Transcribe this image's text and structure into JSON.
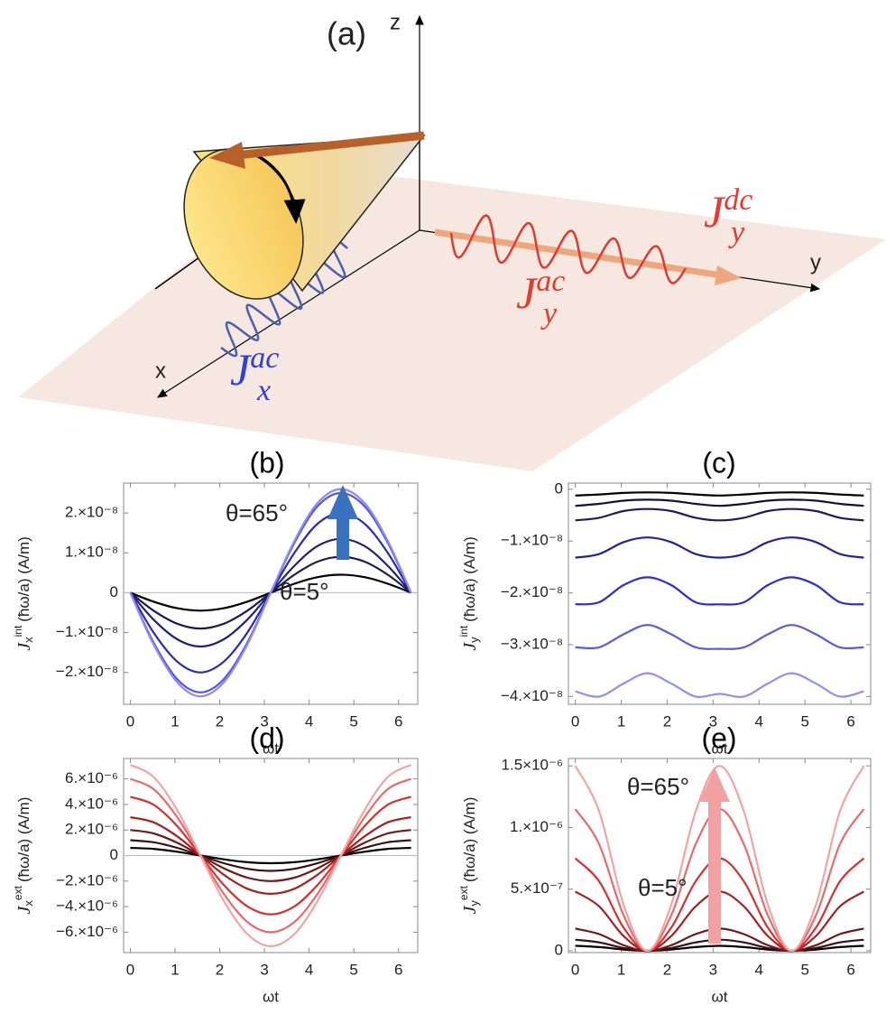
{
  "diagram": {
    "title": "(a)",
    "axes": [
      "x",
      "y",
      "z"
    ],
    "labels": [
      {
        "symbol": "J",
        "sub": "y",
        "sup": "dc",
        "color": "#e53a2f"
      },
      {
        "symbol": "J",
        "sub": "y",
        "sup": "ac",
        "color": "#e53a2f"
      },
      {
        "symbol": "J",
        "sub": "x",
        "sup": "ac",
        "color": "#2f3fd8"
      }
    ]
  },
  "chart_data": [
    {
      "type": "line",
      "title": "(b)",
      "xlabel": "ωt",
      "ylabel": {
        "symbol": "J",
        "sub": "x",
        "sup": "int",
        "unit": "(ħω/a) (A/m)"
      },
      "x": [
        0,
        0.52,
        1.05,
        1.57,
        2.09,
        2.62,
        3.14,
        3.67,
        4.19,
        4.71,
        5.24,
        5.76,
        6.28
      ],
      "xlim": [
        -0.15,
        6.43
      ],
      "xticks": [
        0,
        1,
        2,
        3,
        4,
        5,
        6
      ],
      "ylim": [
        -2.8e-08,
        2.75e-08
      ],
      "yticks": [
        {
          "value": -2e-08,
          "label": "−2.×10⁻⁸"
        },
        {
          "value": -1e-08,
          "label": "−1.×10⁻⁸"
        },
        0,
        {
          "value": 1e-08,
          "label": "1.×10⁻⁸"
        },
        {
          "value": 2e-08,
          "label": "2.×10⁻⁸"
        }
      ],
      "zero_line": true,
      "series": [
        {
          "color": "#000000",
          "values": [
            0,
            -2.25e-09,
            -3.9e-09,
            -4.5e-09,
            -3.9e-09,
            -2.25e-09,
            0,
            2.25e-09,
            3.9e-09,
            4.5e-09,
            3.9e-09,
            2.25e-09,
            0
          ]
        },
        {
          "color": "#1c1c4e",
          "values": [
            0,
            -4.5e-09,
            -7.8e-09,
            -9e-09,
            -7.8e-09,
            -4.5e-09,
            0,
            4.5e-09,
            7.8e-09,
            9e-09,
            7.8e-09,
            4.5e-09,
            0
          ]
        },
        {
          "color": "#20207c",
          "values": [
            0,
            -6.75e-09,
            -1.17e-08,
            -1.35e-08,
            -1.17e-08,
            -6.75e-09,
            0,
            6.75e-09,
            1.17e-08,
            1.35e-08,
            1.17e-08,
            6.75e-09,
            0
          ]
        },
        {
          "color": "#2a2ab4",
          "values": [
            0,
            -1e-08,
            -1.73e-08,
            -2e-08,
            -1.73e-08,
            -1e-08,
            0,
            1e-08,
            1.73e-08,
            2e-08,
            1.73e-08,
            1e-08,
            0
          ]
        },
        {
          "color": "#5656e0",
          "values": [
            0,
            -1.25e-08,
            -2.17e-08,
            -2.5e-08,
            -2.17e-08,
            -1.25e-08,
            0,
            1.25e-08,
            2.17e-08,
            2.5e-08,
            2.17e-08,
            1.25e-08,
            0
          ]
        },
        {
          "color": "#8c8cf2",
          "values": [
            0,
            -1.3e-08,
            -2.25e-08,
            -2.6e-08,
            -2.25e-08,
            -1.3e-08,
            0,
            1.3e-08,
            2.25e-08,
            2.6e-08,
            2.25e-08,
            1.3e-08,
            0
          ]
        }
      ],
      "annotations": [
        "θ=65°",
        "θ=5°"
      ],
      "arrow_color": "#3a72c2"
    },
    {
      "type": "line",
      "title": "(c)",
      "xlabel": "ωt",
      "ylabel": {
        "symbol": "J",
        "sub": "y",
        "sup": "int",
        "unit": "(ħω/a) (A/m)"
      },
      "x": [
        0,
        0.52,
        1.05,
        1.57,
        2.09,
        2.62,
        3.14,
        3.67,
        4.19,
        4.71,
        5.24,
        5.76,
        6.28
      ],
      "xlim": [
        -0.15,
        6.43
      ],
      "xticks": [
        0,
        1,
        2,
        3,
        4,
        5,
        6
      ],
      "ylim": [
        -4.15e-08,
        1.2e-09
      ],
      "yticks": [
        0,
        {
          "value": -1e-08,
          "label": "−1.×10⁻⁸"
        },
        {
          "value": -2e-08,
          "label": "−2.×10⁻⁸"
        },
        {
          "value": -3e-08,
          "label": "−3.×10⁻⁸"
        },
        {
          "value": -4e-08,
          "label": "−4.×10⁻⁸"
        }
      ],
      "series": [
        {
          "color": "#000000",
          "values": [
            -1.2e-09,
            -1e-09,
            -7e-10,
            -6e-10,
            -7e-10,
            -1e-09,
            -1.2e-09,
            -1e-09,
            -7e-10,
            -6e-10,
            -7e-10,
            -1e-09,
            -1.2e-09
          ]
        },
        {
          "color": "#121236",
          "values": [
            -3.2e-09,
            -2.8e-09,
            -2.2e-09,
            -2e-09,
            -2.2e-09,
            -2.8e-09,
            -3.2e-09,
            -2.8e-09,
            -2.2e-09,
            -2e-09,
            -2.2e-09,
            -2.8e-09,
            -3.2e-09
          ]
        },
        {
          "color": "#1c1c5e",
          "values": [
            -6e-09,
            -5.5e-09,
            -4.2e-09,
            -3.8e-09,
            -4.2e-09,
            -5.5e-09,
            -6e-09,
            -5.5e-09,
            -4.2e-09,
            -3.8e-09,
            -4.2e-09,
            -5.5e-09,
            -6e-09
          ]
        },
        {
          "color": "#22229a",
          "values": [
            -1.32e-08,
            -1.25e-08,
            -1.02e-08,
            -9.3e-09,
            -1.02e-08,
            -1.25e-08,
            -1.32e-08,
            -1.25e-08,
            -1.02e-08,
            -9.3e-09,
            -1.02e-08,
            -1.25e-08,
            -1.32e-08
          ]
        },
        {
          "color": "#2b2bd8",
          "values": [
            -2.22e-08,
            -2.18e-08,
            -1.85e-08,
            -1.7e-08,
            -1.85e-08,
            -2.18e-08,
            -2.22e-08,
            -2.18e-08,
            -1.85e-08,
            -1.7e-08,
            -1.85e-08,
            -2.18e-08,
            -2.22e-08
          ]
        },
        {
          "color": "#5b5be6",
          "values": [
            -3.05e-08,
            -3.05e-08,
            -2.8e-08,
            -2.62e-08,
            -2.8e-08,
            -3.05e-08,
            -3.08e-08,
            -3.05e-08,
            -2.8e-08,
            -2.62e-08,
            -2.8e-08,
            -3.05e-08,
            -3.05e-08
          ]
        },
        {
          "color": "#9090f2",
          "values": [
            -3.9e-08,
            -4e-08,
            -3.75e-08,
            -3.55e-08,
            -3.75e-08,
            -4e-08,
            -3.95e-08,
            -4e-08,
            -3.75e-08,
            -3.55e-08,
            -3.75e-08,
            -4e-08,
            -3.9e-08
          ]
        }
      ]
    },
    {
      "type": "line",
      "title": "(d)",
      "xlabel": "ωt",
      "ylabel": {
        "symbol": "J",
        "sub": "x",
        "sup": "ext",
        "unit": "(ħω/a) (A/m)"
      },
      "x": [
        0,
        0.52,
        1.05,
        1.57,
        2.09,
        2.62,
        3.14,
        3.67,
        4.19,
        4.71,
        5.24,
        5.76,
        6.28
      ],
      "xlim": [
        -0.15,
        6.43
      ],
      "xticks": [
        0,
        1,
        2,
        3,
        4,
        5,
        6
      ],
      "ylim": [
        -7.6e-06,
        7.6e-06
      ],
      "yticks": [
        {
          "value": -6e-06,
          "label": "−6.×10⁻⁶"
        },
        {
          "value": -4e-06,
          "label": "−4.×10⁻⁶"
        },
        {
          "value": -2e-06,
          "label": "−2.×10⁻⁶"
        },
        0,
        {
          "value": 2e-06,
          "label": "2.×10⁻⁶"
        },
        {
          "value": 4e-06,
          "label": "4.×10⁻⁶"
        },
        {
          "value": 6e-06,
          "label": "6.×10⁻⁶"
        }
      ],
      "zero_line": true,
      "series": [
        {
          "color": "#000000",
          "values": [
            6e-07,
            5.2e-07,
            3e-07,
            0,
            -3e-07,
            -5.2e-07,
            -6e-07,
            -5.2e-07,
            -3e-07,
            0,
            3e-07,
            5.2e-07,
            6e-07
          ]
        },
        {
          "color": "#3c1010",
          "values": [
            1.2e-06,
            1.04e-06,
            6e-07,
            0,
            -6e-07,
            -1.04e-06,
            -1.2e-06,
            -1.04e-06,
            -6e-07,
            0,
            6e-07,
            1.04e-06,
            1.2e-06
          ]
        },
        {
          "color": "#6e1a1a",
          "values": [
            2e-06,
            1.73e-06,
            1e-06,
            0,
            -1e-06,
            -1.73e-06,
            -2e-06,
            -1.73e-06,
            -1e-06,
            0,
            1e-06,
            1.73e-06,
            2e-06
          ]
        },
        {
          "color": "#a52222",
          "values": [
            3e-06,
            2.6e-06,
            1.5e-06,
            0,
            -1.5e-06,
            -2.6e-06,
            -3e-06,
            -2.6e-06,
            -1.5e-06,
            0,
            1.5e-06,
            2.6e-06,
            3e-06
          ]
        },
        {
          "color": "#d83030",
          "values": [
            4.6e-06,
            3.98e-06,
            2.3e-06,
            0,
            -2.3e-06,
            -3.98e-06,
            -4.6e-06,
            -3.98e-06,
            -2.3e-06,
            0,
            2.3e-06,
            3.98e-06,
            4.6e-06
          ]
        },
        {
          "color": "#e86a6a",
          "values": [
            6e-06,
            5.2e-06,
            3e-06,
            0,
            -3e-06,
            -5.2e-06,
            -6e-06,
            -5.2e-06,
            -3e-06,
            0,
            3e-06,
            5.2e-06,
            6e-06
          ]
        },
        {
          "color": "#f2a4a4",
          "values": [
            7.1e-06,
            6.15e-06,
            3.55e-06,
            0,
            -3.55e-06,
            -6.15e-06,
            -7.1e-06,
            -6.15e-06,
            -3.55e-06,
            0,
            3.55e-06,
            6.15e-06,
            7.1e-06
          ]
        }
      ]
    },
    {
      "type": "line",
      "title": "(e)",
      "xlabel": "ωt",
      "ylabel": {
        "symbol": "J",
        "sub": "y",
        "sup": "ext",
        "unit": "(ħω/a) (A/m)"
      },
      "x": [
        0,
        0.52,
        1.05,
        1.57,
        2.09,
        2.62,
        3.14,
        3.67,
        4.19,
        4.71,
        5.24,
        5.76,
        6.28
      ],
      "xlim": [
        -0.15,
        6.43
      ],
      "xticks": [
        0,
        1,
        2,
        3,
        4,
        5,
        6
      ],
      "ylim": [
        -1.5e-08,
        1.56e-06
      ],
      "yticks": [
        0,
        {
          "value": 5e-07,
          "label": "5.×10⁻⁷"
        },
        {
          "value": 1e-06,
          "label": "1.×10⁻⁶"
        },
        {
          "value": 1.5e-06,
          "label": "1.5×10⁻⁶"
        }
      ],
      "series": [
        {
          "color": "#000000",
          "values": [
            4e-08,
            3e-08,
            1e-08,
            0,
            1e-08,
            3e-08,
            4e-08,
            3e-08,
            1e-08,
            0,
            1e-08,
            3e-08,
            4e-08
          ]
        },
        {
          "color": "#3c1010",
          "values": [
            9e-08,
            6.75e-08,
            2.25e-08,
            0,
            2.25e-08,
            6.75e-08,
            9e-08,
            6.75e-08,
            2.25e-08,
            0,
            2.25e-08,
            6.75e-08,
            9e-08
          ]
        },
        {
          "color": "#6e1a1a",
          "values": [
            1.8e-07,
            1.35e-07,
            4.5e-08,
            0,
            4.5e-08,
            1.35e-07,
            1.8e-07,
            1.35e-07,
            4.5e-08,
            0,
            4.5e-08,
            1.35e-07,
            1.8e-07
          ]
        },
        {
          "color": "#a52222",
          "values": [
            4.8e-07,
            3.6e-07,
            1.2e-07,
            0,
            1.2e-07,
            3.6e-07,
            4.8e-07,
            3.6e-07,
            1.2e-07,
            0,
            1.2e-07,
            3.6e-07,
            4.8e-07
          ]
        },
        {
          "color": "#d83030",
          "values": [
            7.5e-07,
            5.63e-07,
            1.88e-07,
            0,
            1.88e-07,
            5.63e-07,
            7.5e-07,
            5.63e-07,
            1.88e-07,
            0,
            1.88e-07,
            5.63e-07,
            7.5e-07
          ]
        },
        {
          "color": "#e86a6a",
          "values": [
            1.15e-06,
            8.63e-07,
            2.88e-07,
            0,
            2.88e-07,
            8.63e-07,
            1.15e-06,
            8.63e-07,
            2.88e-07,
            0,
            2.88e-07,
            8.63e-07,
            1.15e-06
          ]
        },
        {
          "color": "#f2a4a4",
          "values": [
            1.5e-06,
            1.13e-06,
            3.75e-07,
            0,
            3.75e-07,
            1.13e-06,
            1.5e-06,
            1.13e-06,
            3.75e-07,
            0,
            3.75e-07,
            1.13e-06,
            1.5e-06
          ]
        }
      ],
      "annotations": [
        "θ=65°",
        "θ=5°"
      ],
      "arrow_color": "#f0a2a2"
    }
  ]
}
